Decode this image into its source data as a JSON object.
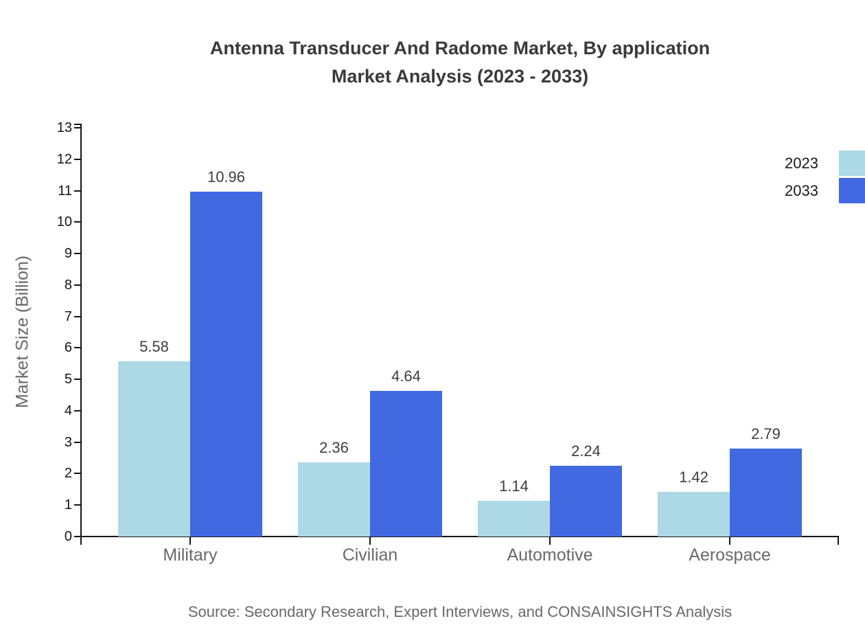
{
  "title": {
    "line1": "Antenna Transducer And Radome Market, By application",
    "line2": "Market Analysis (2023 - 2033)"
  },
  "chart_data": {
    "type": "bar",
    "categories": [
      "Military",
      "Civilian",
      "Automotive",
      "Aerospace"
    ],
    "series": [
      {
        "name": "2023",
        "color": "#add8e6",
        "values": [
          5.58,
          2.36,
          1.14,
          1.42
        ]
      },
      {
        "name": "2033",
        "color": "#4169e1",
        "values": [
          10.96,
          4.64,
          2.24,
          2.79
        ]
      }
    ],
    "title": "Antenna Transducer And Radome Market, By application Market Analysis (2023 - 2033)",
    "xlabel": "",
    "ylabel": "Market Size (Billion)",
    "ylim": [
      0,
      13
    ],
    "ytick_step": 1,
    "yticks": [
      0,
      1,
      2,
      3,
      4,
      5,
      6,
      7,
      8,
      9,
      10,
      11,
      12,
      13
    ],
    "grid": false,
    "value_labels": true,
    "legend_position": "top-right"
  },
  "legend": {
    "items": [
      {
        "label": "2023",
        "color": "#add8e6"
      },
      {
        "label": "2033",
        "color": "#4169e1"
      }
    ]
  },
  "source": "Source: Secondary Research, Expert Interviews, and CONSAINSIGHTS Analysis",
  "colors": {
    "title_text": "#3a3a3a",
    "axis": "#141414",
    "muted_text": "#696969",
    "value_label_text": "#3d3d3d",
    "series_2023": "#add8e6",
    "series_2033": "#4169e1"
  }
}
